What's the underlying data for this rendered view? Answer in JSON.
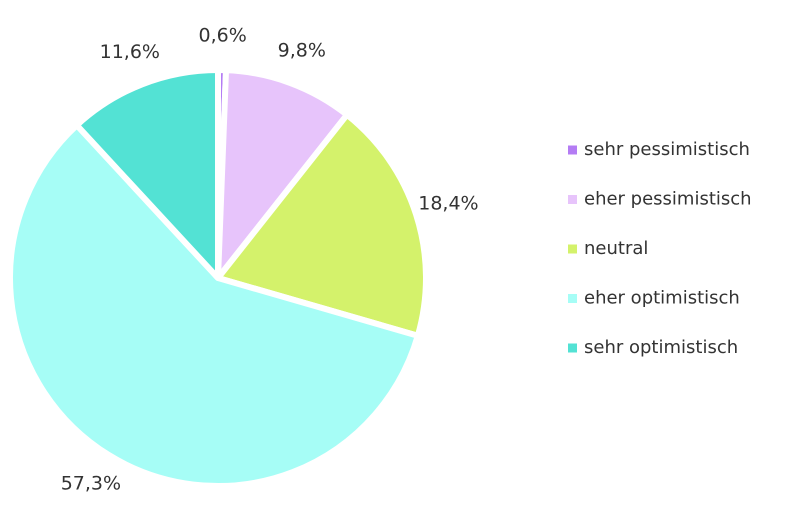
{
  "chart_data": {
    "type": "pie",
    "categories": [
      "sehr pessimistisch",
      "eher pessimistisch",
      "neutral",
      "eher optimistisch",
      "sehr optimistisch"
    ],
    "values": [
      0.6,
      9.8,
      18.4,
      57.3,
      11.6
    ],
    "value_labels": [
      "0,6%",
      "9,8%",
      "18,4%",
      "57,3%",
      "11,6%"
    ],
    "colors": [
      "#b47cf4",
      "#e7c4fb",
      "#d4f26b",
      "#a6fdf6",
      "#53e2d4"
    ]
  }
}
